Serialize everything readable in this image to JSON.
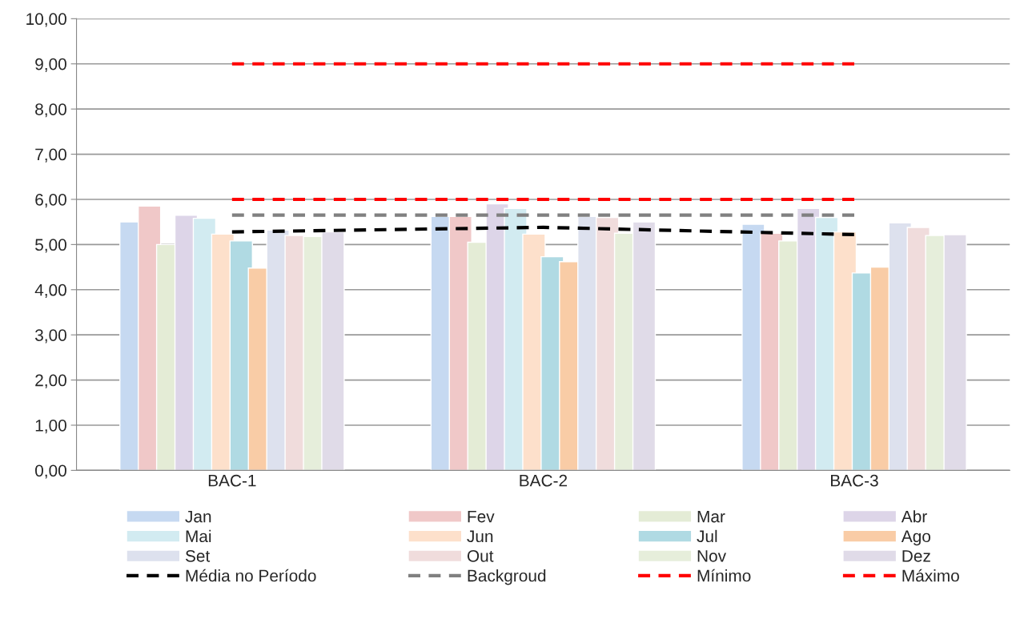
{
  "chart_data": {
    "type": "bar",
    "categories": [
      "BAC-1",
      "BAC-2",
      "BAC-3"
    ],
    "series": [
      {
        "name": "Jan",
        "color": "#c6d9f1",
        "values": [
          5.5,
          5.62,
          5.45
        ]
      },
      {
        "name": "Fev",
        "color": "#f0c8c8",
        "values": [
          5.85,
          5.62,
          5.25
        ]
      },
      {
        "name": "Mar",
        "color": "#e4ecd6",
        "values": [
          5.0,
          5.05,
          5.08
        ]
      },
      {
        "name": "Abr",
        "color": "#ddd5e8",
        "values": [
          5.65,
          5.9,
          5.8
        ]
      },
      {
        "name": "Mai",
        "color": "#d2ebf1",
        "values": [
          5.58,
          5.8,
          5.6
        ]
      },
      {
        "name": "Jun",
        "color": "#fde0cb",
        "values": [
          5.23,
          5.23,
          5.28
        ]
      },
      {
        "name": "Jul",
        "color": "#b0dae3",
        "values": [
          5.08,
          4.73,
          4.37
        ]
      },
      {
        "name": "Ago",
        "color": "#f9cca6",
        "values": [
          4.48,
          4.62,
          4.5
        ]
      },
      {
        "name": "Set",
        "color": "#dde1ee",
        "values": [
          5.32,
          5.62,
          5.48
        ]
      },
      {
        "name": "Out",
        "color": "#f0dcdc",
        "values": [
          5.2,
          5.6,
          5.38
        ]
      },
      {
        "name": "Nov",
        "color": "#e6eedb",
        "values": [
          5.18,
          5.25,
          5.2
        ]
      },
      {
        "name": "Dez",
        "color": "#e0dbe8",
        "values": [
          5.28,
          5.5,
          5.22
        ]
      },
      {
        "name": "Média no Período",
        "type": "line",
        "line_style": "dashed",
        "color": "#000000",
        "values": [
          5.28,
          5.38,
          5.22
        ]
      },
      {
        "name": "Backgroud",
        "type": "line",
        "line_style": "dashed",
        "color": "#808080",
        "values": [
          5.65,
          5.65,
          5.65
        ]
      },
      {
        "name": "Mínimo",
        "type": "line",
        "line_style": "dashed",
        "color": "#ff0000",
        "values": [
          6.0,
          6.0,
          6.0
        ]
      },
      {
        "name": "Máximo",
        "type": "line",
        "line_style": "dashed",
        "color": "#ff0000",
        "values": [
          9.0,
          9.0,
          9.0
        ]
      }
    ],
    "ylim": [
      0,
      10
    ],
    "yticks": [
      {
        "value": 0,
        "label": "0,00"
      },
      {
        "value": 1,
        "label": "1,00"
      },
      {
        "value": 2,
        "label": "2,00"
      },
      {
        "value": 3,
        "label": "3,00"
      },
      {
        "value": 4,
        "label": "4,00"
      },
      {
        "value": 5,
        "label": "5,00"
      },
      {
        "value": 6,
        "label": "6,00"
      },
      {
        "value": 7,
        "label": "7,00"
      },
      {
        "value": 8,
        "label": "8,00"
      },
      {
        "value": 9,
        "label": "9,00"
      },
      {
        "value": 10,
        "label": "10,00"
      }
    ],
    "grid": "y",
    "legend": "bottom"
  }
}
